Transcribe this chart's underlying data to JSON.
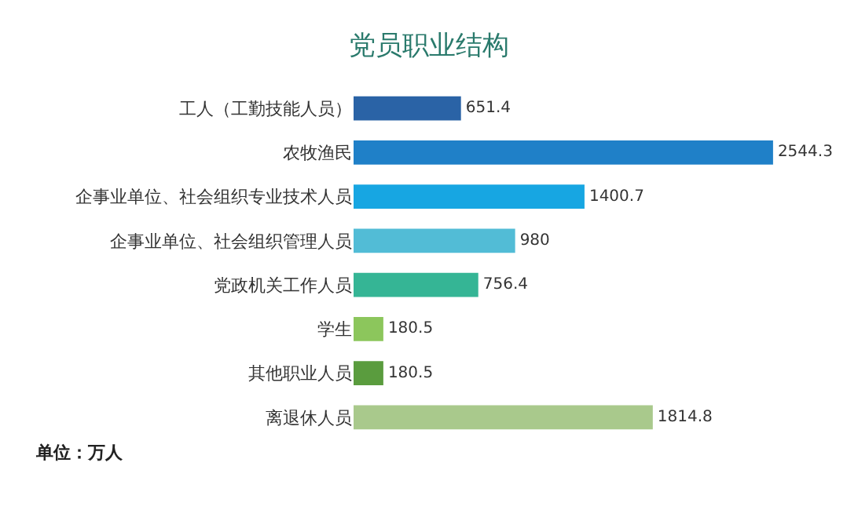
{
  "chart_data": {
    "type": "bar",
    "orientation": "horizontal",
    "title": "党员职业结构",
    "categories": [
      "工人（工勤技能人员）",
      "农牧渔民",
      "企事业单位、社会组织专业技术人员",
      "企事业单位、社会组织管理人员",
      "党政机关工作人员",
      "学生",
      "其他职业人员",
      "离退休人员"
    ],
    "values": [
      651.4,
      2544.3,
      1400.7,
      980,
      756.4,
      180.5,
      180.5,
      1814.8
    ],
    "colors": [
      "#2a63a6",
      "#1f80c8",
      "#17a6e2",
      "#52bcd6",
      "#35b595",
      "#8cc65c",
      "#5a9c3e",
      "#a9c98c"
    ],
    "data_labels": true,
    "annotations": [
      "单位：万人"
    ]
  }
}
